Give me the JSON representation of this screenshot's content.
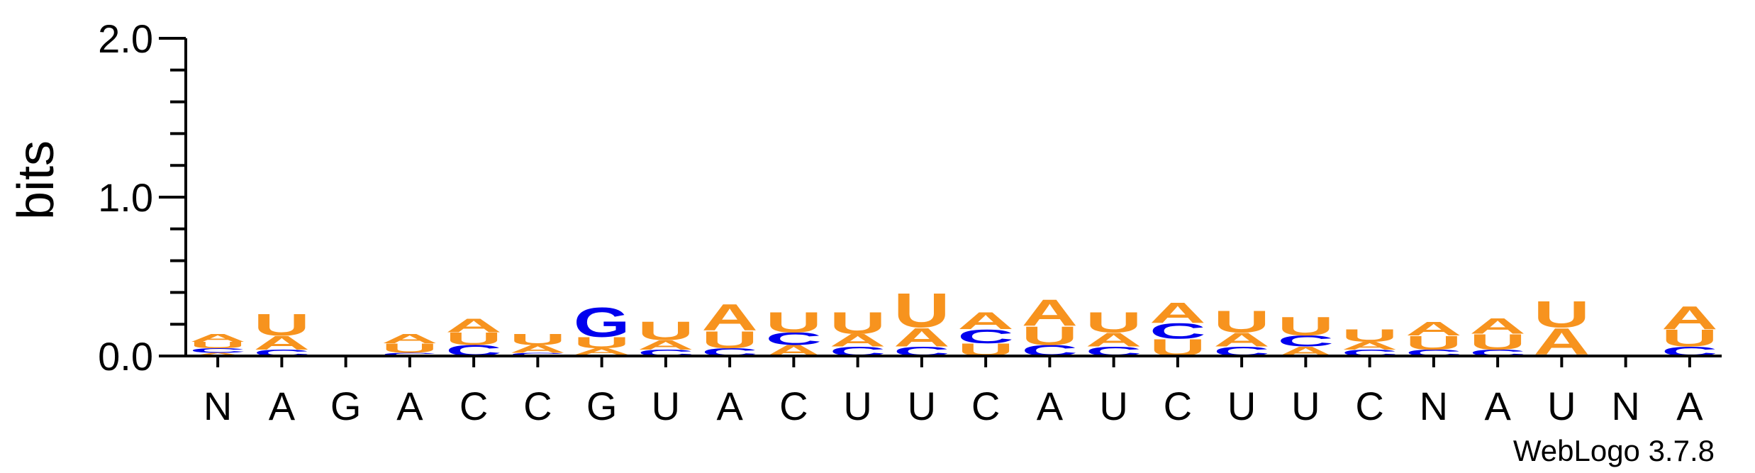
{
  "chart_data": {
    "type": "sequence-logo",
    "ylabel": "bits",
    "ylim": [
      0,
      2.0
    ],
    "yticks": [
      {
        "value": 0.0,
        "label": "0.0"
      },
      {
        "value": 1.0,
        "label": "1.0"
      },
      {
        "value": 2.0,
        "label": "2.0"
      }
    ],
    "colors": {
      "A": "#f7931e",
      "U": "#f7931e",
      "C": "#0000ee",
      "G": "#0000ee"
    },
    "positions": [
      {
        "label": "N",
        "stack": [
          [
            "A",
            0.02
          ],
          [
            "C",
            0.03
          ],
          [
            "U",
            0.04
          ],
          [
            "A",
            0.05
          ]
        ]
      },
      {
        "label": "A",
        "stack": [
          [
            "C",
            0.04
          ],
          [
            "A",
            0.09
          ],
          [
            "U",
            0.14
          ]
        ]
      },
      {
        "label": "G",
        "stack": []
      },
      {
        "label": "A",
        "stack": [
          [
            "C",
            0.02
          ],
          [
            "U",
            0.06
          ],
          [
            "A",
            0.06
          ]
        ]
      },
      {
        "label": "C",
        "stack": [
          [
            "C",
            0.07
          ],
          [
            "U",
            0.08
          ],
          [
            "A",
            0.09
          ]
        ]
      },
      {
        "label": "C",
        "stack": [
          [
            "C",
            0.02
          ],
          [
            "A",
            0.05
          ],
          [
            "U",
            0.07
          ]
        ]
      },
      {
        "label": "G",
        "stack": [
          [
            "C",
            0.01
          ],
          [
            "A",
            0.04
          ],
          [
            "U",
            0.07
          ],
          [
            "G",
            0.19
          ]
        ]
      },
      {
        "label": "U",
        "stack": [
          [
            "C",
            0.04
          ],
          [
            "A",
            0.06
          ],
          [
            "U",
            0.12
          ]
        ]
      },
      {
        "label": "A",
        "stack": [
          [
            "C",
            0.05
          ],
          [
            "U",
            0.11
          ],
          [
            "A",
            0.17
          ]
        ]
      },
      {
        "label": "C",
        "stack": [
          [
            "A",
            0.07
          ],
          [
            "C",
            0.08
          ],
          [
            "U",
            0.13
          ]
        ]
      },
      {
        "label": "U",
        "stack": [
          [
            "C",
            0.06
          ],
          [
            "A",
            0.08
          ],
          [
            "U",
            0.14
          ]
        ]
      },
      {
        "label": "U",
        "stack": [
          [
            "C",
            0.06
          ],
          [
            "A",
            0.12
          ],
          [
            "U",
            0.22
          ]
        ]
      },
      {
        "label": "C",
        "stack": [
          [
            "U",
            0.08
          ],
          [
            "C",
            0.09
          ],
          [
            "A",
            0.11
          ]
        ]
      },
      {
        "label": "A",
        "stack": [
          [
            "C",
            0.07
          ],
          [
            "U",
            0.12
          ],
          [
            "A",
            0.17
          ]
        ]
      },
      {
        "label": "U",
        "stack": [
          [
            "C",
            0.06
          ],
          [
            "A",
            0.09
          ],
          [
            "U",
            0.13
          ]
        ]
      },
      {
        "label": "C",
        "stack": [
          [
            "U",
            0.11
          ],
          [
            "C",
            0.1
          ],
          [
            "A",
            0.13
          ]
        ]
      },
      {
        "label": "U",
        "stack": [
          [
            "C",
            0.06
          ],
          [
            "A",
            0.09
          ],
          [
            "U",
            0.14
          ]
        ]
      },
      {
        "label": "U",
        "stack": [
          [
            "A",
            0.06
          ],
          [
            "C",
            0.07
          ],
          [
            "U",
            0.12
          ]
        ]
      },
      {
        "label": "C",
        "stack": [
          [
            "C",
            0.04
          ],
          [
            "A",
            0.05
          ],
          [
            "U",
            0.08
          ]
        ]
      },
      {
        "label": "N",
        "stack": [
          [
            "C",
            0.04
          ],
          [
            "U",
            0.09
          ],
          [
            "A",
            0.09
          ]
        ]
      },
      {
        "label": "A",
        "stack": [
          [
            "C",
            0.04
          ],
          [
            "U",
            0.1
          ],
          [
            "A",
            0.1
          ]
        ]
      },
      {
        "label": "U",
        "stack": [
          [
            "C",
            0.01
          ],
          [
            "A",
            0.17
          ],
          [
            "U",
            0.17
          ]
        ]
      },
      {
        "label": "N",
        "stack": []
      },
      {
        "label": "A",
        "stack": [
          [
            "C",
            0.06
          ],
          [
            "U",
            0.11
          ],
          [
            "A",
            0.15
          ]
        ]
      }
    ],
    "footer": "WebLogo 3.7.8"
  }
}
